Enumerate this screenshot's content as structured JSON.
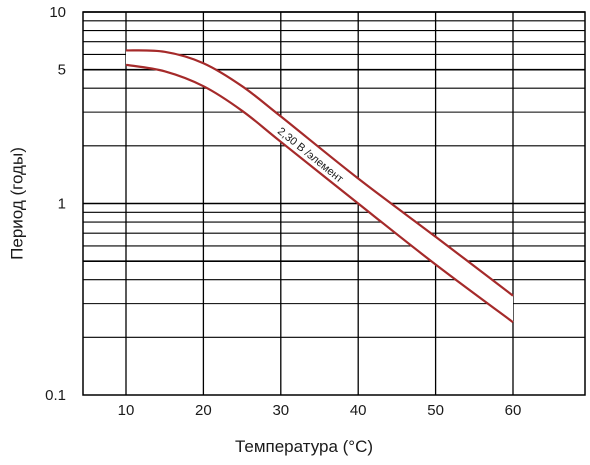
{
  "chart_data": {
    "type": "area",
    "title": "",
    "xlabel": "Температура (°C)",
    "ylabel": "Период (годы)",
    "x_scale": "linear",
    "y_scale": "log",
    "xlim": [
      5,
      70
    ],
    "ylim": [
      0.1,
      10
    ],
    "x_ticks": [
      10,
      20,
      30,
      40,
      50,
      60
    ],
    "x_tick_labels": [
      "10",
      "20",
      "30",
      "40",
      "50",
      "60"
    ],
    "y_ticks": [
      0.1,
      1,
      5,
      10
    ],
    "y_tick_labels": [
      "0.1",
      "1",
      "5",
      "10"
    ],
    "grid": true,
    "band": {
      "label": "2,30 В /элемент",
      "color": "#a52a2a",
      "upper": {
        "x": [
          10,
          15,
          20,
          25,
          30,
          40,
          50,
          60
        ],
        "y": [
          6.3,
          6.2,
          5.4,
          4.1,
          2.85,
          1.35,
          0.67,
          0.33
        ]
      },
      "lower": {
        "x": [
          10,
          15,
          20,
          25,
          30,
          40,
          50,
          60
        ],
        "y": [
          5.3,
          4.9,
          4.1,
          3.05,
          2.1,
          1.0,
          0.48,
          0.24
        ]
      }
    }
  }
}
